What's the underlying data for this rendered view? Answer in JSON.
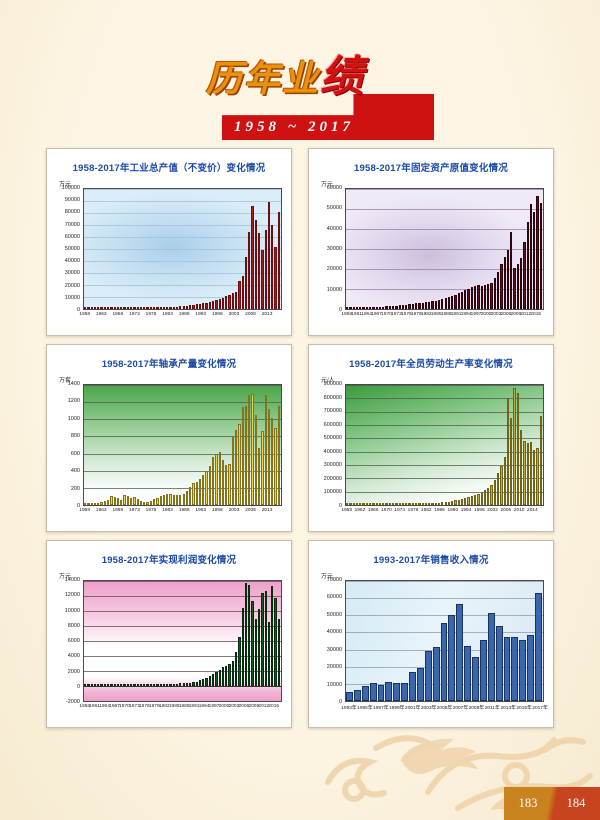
{
  "header": {
    "title_main_part": "历年业",
    "title_accent_part": "绩",
    "title_full": "历年业绩",
    "year_range": "1958 ~ 2017"
  },
  "footer": {
    "page_number_left": "183",
    "page_number_right": "184"
  },
  "chart_data": [
    {
      "type": "bar",
      "title": "1958-2017年工业总产值（不变价）变化情况",
      "ylabel": "万元",
      "x_start_year": 1958,
      "x_end_year": 2017,
      "ylim": [
        0,
        100000
      ],
      "y_ticks": [
        0,
        10000,
        20000,
        30000,
        40000,
        50000,
        60000,
        70000,
        80000,
        90000,
        100000
      ],
      "x_tick_labels": [
        "1958",
        "1963",
        "1968",
        "1973",
        "1978",
        "1983",
        "1988",
        "1993",
        "1998",
        "2003",
        "2008",
        "2013"
      ],
      "x_tick_step": 5,
      "grid": true,
      "legend": false,
      "bg_theme": "blue",
      "bar_color": "#a31f1f",
      "bar_border": "#6d0d0d",
      "grid_color": "#9dc0da",
      "values": [
        300,
        400,
        500,
        400,
        300,
        350,
        400,
        450,
        500,
        450,
        400,
        500,
        600,
        700,
        750,
        800,
        750,
        850,
        800,
        900,
        1000,
        1100,
        1200,
        1100,
        1200,
        1300,
        1500,
        1700,
        1900,
        2100,
        2400,
        2700,
        3000,
        3400,
        3900,
        4400,
        4900,
        5400,
        5900,
        6400,
        7200,
        8200,
        9500,
        11000,
        12000,
        13500,
        14500,
        23500,
        27500,
        43500,
        64500,
        85500,
        74500,
        63000,
        49000,
        65500,
        89500,
        70000,
        52000,
        81000
      ]
    },
    {
      "type": "bar",
      "title": "1958-2017年固定资产原值变化情况",
      "ylabel": "万元",
      "x_start_year": 1958,
      "x_end_year": 2017,
      "ylim": [
        0,
        60000
      ],
      "y_ticks": [
        0,
        10000,
        20000,
        30000,
        40000,
        50000,
        60000
      ],
      "x_tick_labels": [
        "1958",
        "1961",
        "1964",
        "1967",
        "1970",
        "1973",
        "1976",
        "1979",
        "1982",
        "1985",
        "1988",
        "1991",
        "1994",
        "1997",
        "2000",
        "2003",
        "2006",
        "2009",
        "2012",
        "2015"
      ],
      "x_tick_step": 3,
      "grid": true,
      "legend": false,
      "bg_theme": "purple",
      "bar_color": "#55121f",
      "bar_border": "#2f050d",
      "grid_color": "#8d819f",
      "values": [
        300,
        400,
        500,
        600,
        650,
        700,
        750,
        800,
        900,
        1000,
        1100,
        1200,
        1300,
        1400,
        1500,
        1600,
        1800,
        2000,
        2200,
        2400,
        2600,
        2800,
        3000,
        3200,
        3400,
        3600,
        3900,
        4200,
        4600,
        5000,
        5500,
        6000,
        6500,
        7200,
        7900,
        8600,
        9400,
        10200,
        11000,
        11500,
        12000,
        11600,
        11900,
        12300,
        12800,
        15500,
        18500,
        22500,
        26000,
        29500,
        38500,
        20500,
        22500,
        25500,
        33500,
        43500,
        52500,
        48500,
        56500,
        53000
      ]
    },
    {
      "type": "bar",
      "title": "1958-2017年轴承产量变化情况",
      "ylabel": "万套",
      "x_start_year": 1958,
      "x_end_year": 2017,
      "ylim": [
        0,
        1400
      ],
      "y_ticks": [
        0,
        200,
        400,
        600,
        800,
        1000,
        1200,
        1400
      ],
      "x_tick_labels": [
        "1958",
        "1963",
        "1968",
        "1973",
        "1978",
        "1983",
        "1988",
        "1993",
        "1998",
        "2003",
        "2008",
        "2013"
      ],
      "x_tick_step": 5,
      "grid": true,
      "legend": false,
      "bg_theme": "green",
      "bar_color": "#e9d34f",
      "bar_border": "#84751c",
      "grid_color": "#4d5a4d",
      "values": [
        5,
        8,
        12,
        10,
        8,
        30,
        50,
        60,
        110,
        90,
        85,
        60,
        120,
        110,
        85,
        95,
        75,
        45,
        30,
        35,
        45,
        65,
        80,
        100,
        120,
        130,
        125,
        120,
        115,
        120,
        130,
        160,
        210,
        260,
        270,
        300,
        350,
        400,
        460,
        560,
        600,
        620,
        530,
        470,
        480,
        790,
        870,
        950,
        1140,
        1160,
        1280,
        1300,
        1050,
        670,
        860,
        1280,
        1120,
        1010,
        900,
        1160
      ]
    },
    {
      "type": "bar",
      "title": "1958-2017年全员劳动生产率变化情况",
      "ylabel": "元/人",
      "x_start_year": 1958,
      "x_end_year": 2017,
      "ylim": [
        0,
        900000
      ],
      "y_ticks": [
        0,
        100000,
        200000,
        300000,
        400000,
        500000,
        600000,
        700000,
        800000,
        900000
      ],
      "x_tick_labels": [
        "1958",
        "1962",
        "1966",
        "1970",
        "1974",
        "1978",
        "1982",
        "1986",
        "1990",
        "1994",
        "1998",
        "2002",
        "2006",
        "2010",
        "2014"
      ],
      "x_tick_step": 4,
      "grid": true,
      "legend": false,
      "bg_theme": "green2",
      "bar_color": "#bcac3e",
      "bar_border": "#6f6418",
      "grid_color": "#4d5a4d",
      "values": [
        2000,
        2500,
        3000,
        2500,
        2000,
        2500,
        3000,
        3500,
        4000,
        3500,
        3000,
        4000,
        5000,
        6000,
        6500,
        7000,
        6500,
        7500,
        7000,
        8000,
        9000,
        10000,
        11000,
        10000,
        11000,
        12000,
        14000,
        16000,
        18000,
        20000,
        23000,
        26000,
        30000,
        34000,
        39000,
        45000,
        52000,
        60000,
        68000,
        76000,
        85000,
        95000,
        110000,
        130000,
        150000,
        190000,
        240000,
        290000,
        360000,
        800000,
        650000,
        880000,
        840000,
        560000,
        480000,
        465000,
        475000,
        415000,
        425000,
        665000
      ]
    },
    {
      "type": "bar",
      "title": "1958-2017年实现利润变化情况",
      "ylabel": "万元",
      "x_start_year": 1958,
      "x_end_year": 2017,
      "ylim": [
        -2000,
        14000
      ],
      "y_ticks": [
        -2000,
        0,
        2000,
        4000,
        6000,
        8000,
        10000,
        12000,
        14000
      ],
      "x_tick_labels": [
        "1958",
        "1961",
        "1964",
        "1967",
        "1970",
        "1973",
        "1976",
        "1979",
        "1982",
        "1985",
        "1988",
        "1991",
        "1994",
        "1997",
        "2000",
        "2003",
        "2006",
        "2009",
        "2012",
        "2015"
      ],
      "x_tick_step": 3,
      "grid": true,
      "legend": false,
      "bg_theme": "pink",
      "bar_color": "#155723",
      "bar_border": "#062d0e",
      "grid_color": "#5a4a55",
      "values": [
        50,
        80,
        100,
        60,
        50,
        80,
        100,
        120,
        150,
        120,
        100,
        150,
        200,
        250,
        220,
        250,
        200,
        180,
        150,
        160,
        180,
        200,
        220,
        200,
        220,
        250,
        280,
        300,
        320,
        350,
        380,
        420,
        450,
        500,
        600,
        800,
        900,
        1100,
        1300,
        1600,
        1900,
        2200,
        2500,
        2700,
        3000,
        3400,
        4600,
        6600,
        10400,
        13800,
        13500,
        11300,
        9000,
        10300,
        12400,
        12700,
        8600,
        13400,
        11700,
        9000
      ]
    },
    {
      "type": "bar",
      "title": "1993-2017年销售收入情况",
      "ylabel": "万元",
      "x_start_year": 1993,
      "x_end_year": 2017,
      "ylim": [
        0,
        70000
      ],
      "y_ticks": [
        0,
        10000,
        20000,
        30000,
        40000,
        50000,
        60000,
        70000
      ],
      "x_tick_labels": [
        "1993年",
        "1995年",
        "1997年",
        "1999年",
        "2001年",
        "2003年",
        "2005年",
        "2007年",
        "2009年",
        "2011年",
        "2013年",
        "2015年",
        "2017年"
      ],
      "x_tick_step": 2,
      "grid": true,
      "legend": false,
      "bg_theme": "lightblue",
      "bar_color": "#3b66ad",
      "bar_border": "#17335f",
      "grid_color": "#8d99a5",
      "values": [
        5000,
        6200,
        8500,
        10500,
        9500,
        11000,
        10300,
        10500,
        17000,
        19000,
        29000,
        31500,
        45500,
        50000,
        56500,
        32000,
        25500,
        35500,
        51500,
        44000,
        37500,
        37500,
        35500,
        38500,
        63000
      ]
    }
  ]
}
